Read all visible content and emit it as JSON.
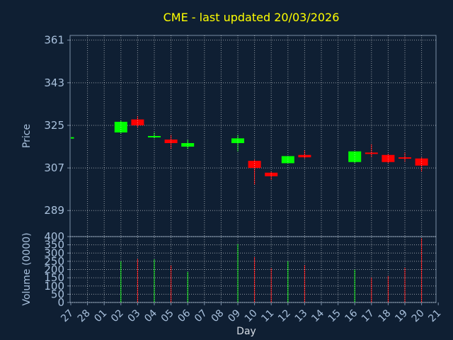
{
  "chart_data": {
    "type": "candlestick",
    "title": "CME - last updated 20/03/2026",
    "xlabel": "Day",
    "price_ylabel": "Price",
    "volume_ylabel": "Volume (0000)",
    "x_ticks": [
      "27",
      "28",
      "01",
      "02",
      "03",
      "04",
      "05",
      "06",
      "07",
      "08",
      "09",
      "10",
      "11",
      "12",
      "13",
      "14",
      "15",
      "16",
      "17",
      "18",
      "19",
      "20",
      "21"
    ],
    "price_yticks": [
      289,
      307,
      325,
      343,
      361
    ],
    "price_ylim": [
      278,
      363
    ],
    "volume_yticks": [
      0,
      50,
      100,
      150,
      200,
      250,
      300,
      350,
      400
    ],
    "volume_ylim": [
      0,
      400
    ],
    "grid": true,
    "colors": {
      "up": "#00ff00",
      "down": "#ff0000",
      "background": "#0f1f33",
      "grid": "#ffffff",
      "title": "#ffff00",
      "axis": "#a8c0dc"
    },
    "candles": [
      {
        "day": "27",
        "open": 320,
        "close": 320,
        "high": 320,
        "low": 320,
        "volume": 0,
        "dir": "up"
      },
      {
        "day": "02",
        "open": 322,
        "close": 326.5,
        "high": 327,
        "low": 321.5,
        "volume": 250,
        "dir": "up"
      },
      {
        "day": "03",
        "open": 327.5,
        "close": 325,
        "high": 329,
        "low": 324,
        "volume": 265,
        "dir": "down"
      },
      {
        "day": "04",
        "open": 320,
        "close": 320.5,
        "high": 322,
        "low": 319.5,
        "volume": 262,
        "dir": "up"
      },
      {
        "day": "05",
        "open": 319,
        "close": 317.5,
        "high": 321,
        "low": 315,
        "volume": 225,
        "dir": "down"
      },
      {
        "day": "06",
        "open": 316,
        "close": 317.5,
        "high": 319,
        "low": 315,
        "volume": 185,
        "dir": "up"
      },
      {
        "day": "09",
        "open": 317.5,
        "close": 319.5,
        "high": 321,
        "low": 314,
        "volume": 355,
        "dir": "up"
      },
      {
        "day": "10",
        "open": 310,
        "close": 307,
        "high": 310.5,
        "low": 300,
        "volume": 275,
        "dir": "down"
      },
      {
        "day": "11",
        "open": 305,
        "close": 303.5,
        "high": 305.5,
        "low": 302,
        "volume": 208,
        "dir": "down"
      },
      {
        "day": "12",
        "open": 309,
        "close": 312,
        "high": 312,
        "low": 309,
        "volume": 250,
        "dir": "up"
      },
      {
        "day": "13",
        "open": 312.5,
        "close": 311.5,
        "high": 314.5,
        "low": 311,
        "volume": 228,
        "dir": "down"
      },
      {
        "day": "16",
        "open": 309.5,
        "close": 314,
        "high": 314,
        "low": 309,
        "volume": 200,
        "dir": "up"
      },
      {
        "day": "17",
        "open": 313.5,
        "close": 313,
        "high": 317,
        "low": 311.5,
        "volume": 152,
        "dir": "down"
      },
      {
        "day": "18",
        "open": 312.5,
        "close": 309.5,
        "high": 313,
        "low": 309,
        "volume": 160,
        "dir": "down"
      },
      {
        "day": "19",
        "open": 311.5,
        "close": 311,
        "high": 313.5,
        "low": 309.5,
        "volume": 210,
        "dir": "down"
      },
      {
        "day": "20",
        "open": 311,
        "close": 308,
        "high": 311.5,
        "low": 305.5,
        "volume": 390,
        "dir": "down"
      }
    ]
  }
}
